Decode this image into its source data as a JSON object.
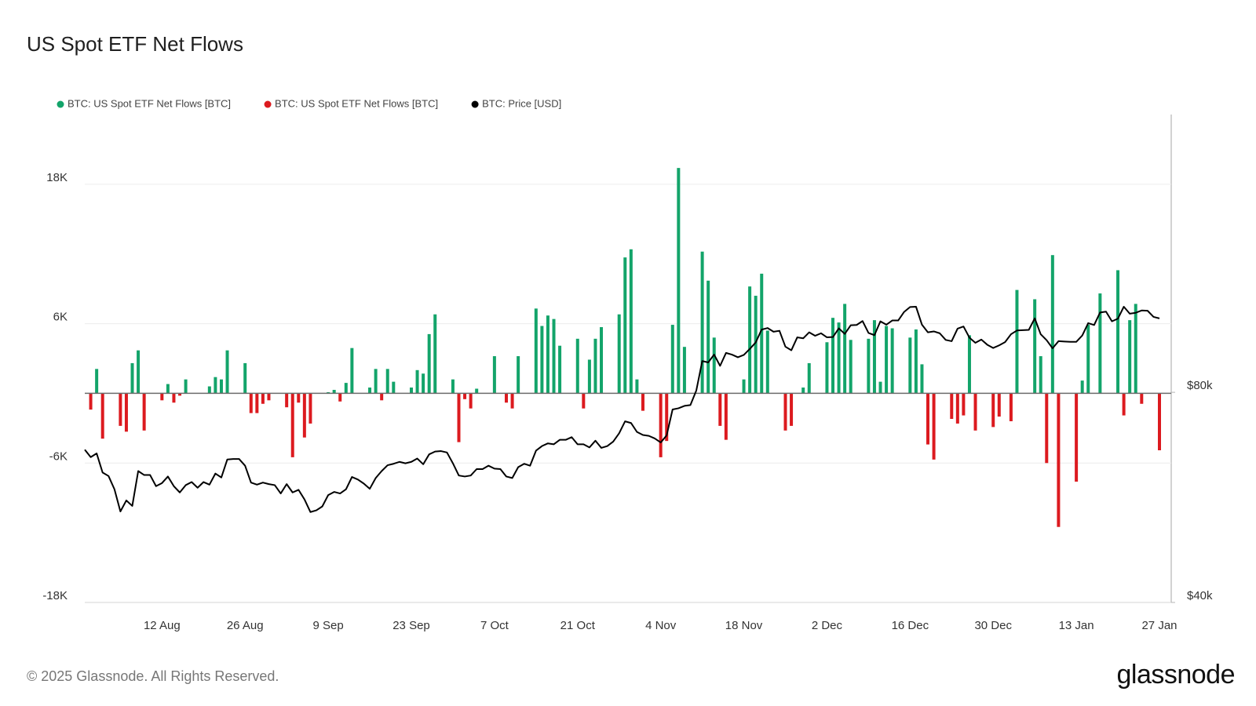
{
  "chart_data": {
    "type": "bar",
    "title": "US Spot ETF Net Flows",
    "categories": [
      null,
      null,
      null,
      null,
      null,
      null,
      null,
      null,
      null,
      null,
      null,
      null,
      null,
      "12 Aug",
      null,
      null,
      null,
      null,
      null,
      null,
      null,
      null,
      null,
      null,
      null,
      null,
      null,
      "26 Aug",
      null,
      null,
      null,
      null,
      null,
      null,
      null,
      null,
      null,
      null,
      null,
      null,
      null,
      "9 Sep",
      null,
      null,
      null,
      null,
      null,
      null,
      null,
      null,
      null,
      null,
      null,
      null,
      null,
      "23 Sep",
      null,
      null,
      null,
      null,
      null,
      null,
      null,
      null,
      null,
      null,
      null,
      null,
      null,
      "7 Oct",
      null,
      null,
      null,
      null,
      null,
      null,
      null,
      null,
      null,
      null,
      null,
      null,
      null,
      "21 Oct",
      null,
      null,
      null,
      null,
      null,
      null,
      null,
      null,
      null,
      null,
      null,
      null,
      null,
      "4 Nov",
      null,
      null,
      null,
      null,
      null,
      null,
      null,
      null,
      null,
      null,
      null,
      null,
      null,
      "18 Nov",
      null,
      null,
      null,
      null,
      null,
      null,
      null,
      null,
      null,
      null,
      null,
      null,
      null,
      "2 Dec",
      null,
      null,
      null,
      null,
      null,
      null,
      null,
      null,
      null,
      null,
      null,
      null,
      null,
      "16 Dec",
      null,
      null,
      null,
      null,
      null,
      null,
      null,
      null,
      null,
      null,
      null,
      null,
      null,
      "30 Dec",
      null,
      null,
      null,
      null,
      null,
      null,
      null,
      null,
      null,
      null,
      null,
      null,
      null,
      "13 Jan",
      null,
      null,
      null,
      null,
      null,
      null,
      null,
      null,
      null,
      null,
      null,
      null,
      null,
      "27 Jan"
    ],
    "series": [
      {
        "name": "BTC: US Spot ETF Net Flows [BTC]",
        "color": "#13a46a",
        "values": [
          null,
          null,
          2100,
          null,
          null,
          null,
          null,
          null,
          2600,
          3700,
          null,
          null,
          null,
          null,
          800,
          null,
          null,
          1200,
          null,
          null,
          null,
          600,
          1400,
          1200,
          3700,
          null,
          null,
          2600,
          null,
          null,
          null,
          null,
          null,
          null,
          null,
          null,
          null,
          null,
          null,
          null,
          null,
          100,
          300,
          null,
          900,
          3900,
          null,
          null,
          500,
          2100,
          null,
          2100,
          1000,
          null,
          null,
          500,
          2000,
          1700,
          5100,
          6800,
          null,
          null,
          1200,
          null,
          null,
          null,
          400,
          null,
          null,
          3200,
          null,
          null,
          null,
          3200,
          null,
          null,
          7300,
          5800,
          6700,
          6400,
          4100,
          null,
          null,
          4700,
          null,
          2900,
          4700,
          5700,
          null,
          null,
          6800,
          11700,
          12400,
          1200,
          null,
          null,
          null,
          null,
          null,
          5900,
          19400,
          4000,
          null,
          null,
          12200,
          9700,
          4800,
          null,
          null,
          null,
          null,
          1200,
          9200,
          8400,
          10300,
          5400,
          null,
          null,
          null,
          null,
          null,
          500,
          2600,
          null,
          null,
          4400,
          6500,
          6100,
          7700,
          4600,
          null,
          null,
          4700,
          6300,
          1000,
          5800,
          5600,
          null,
          null,
          4800,
          5500,
          2500,
          null,
          null,
          null,
          null,
          null,
          null,
          null,
          5000,
          null,
          null,
          null,
          null,
          null,
          null,
          null,
          8900,
          null,
          null,
          8100,
          3200,
          null,
          11900,
          null,
          null,
          null,
          null,
          1100,
          5900,
          null,
          8600,
          null,
          null,
          10600,
          null,
          6300,
          7700,
          null,
          null,
          null,
          null
        ]
      },
      {
        "name": "BTC: US Spot ETF Net Flows [BTC]",
        "color": "#dc1a1f",
        "values": [
          null,
          -1400,
          null,
          -3900,
          null,
          null,
          -2800,
          -3300,
          null,
          null,
          -3200,
          null,
          null,
          -600,
          null,
          -800,
          -200,
          null,
          null,
          null,
          null,
          null,
          null,
          null,
          null,
          null,
          null,
          null,
          -1700,
          -1700,
          -900,
          -600,
          null,
          null,
          -1200,
          -5500,
          -800,
          -3800,
          -2600,
          null,
          null,
          null,
          null,
          -700,
          null,
          null,
          null,
          null,
          null,
          null,
          -600,
          null,
          null,
          null,
          null,
          null,
          null,
          null,
          null,
          null,
          null,
          null,
          null,
          -4200,
          -500,
          -1300,
          null,
          null,
          null,
          null,
          null,
          -800,
          -1300,
          null,
          null,
          null,
          null,
          null,
          null,
          null,
          null,
          null,
          null,
          null,
          -1300,
          null,
          null,
          null,
          null,
          null,
          null,
          null,
          null,
          null,
          -1500,
          null,
          null,
          -5500,
          -4100,
          null,
          null,
          null,
          null,
          null,
          null,
          null,
          null,
          -2800,
          -4000,
          null,
          null,
          null,
          null,
          null,
          null,
          null,
          null,
          null,
          -3200,
          -2800,
          null,
          null,
          null,
          null,
          null,
          null,
          null,
          null,
          null,
          null,
          null,
          null,
          null,
          null,
          null,
          null,
          null,
          null,
          null,
          null,
          null,
          null,
          -4400,
          -5700,
          null,
          null,
          -2200,
          -2600,
          -1900,
          null,
          -3200,
          null,
          null,
          -2900,
          -2000,
          null,
          -2400,
          null,
          null,
          null,
          null,
          null,
          -6000,
          null,
          -11500,
          null,
          null,
          -7600,
          null,
          null,
          null,
          null,
          null,
          null,
          null,
          -1900,
          null,
          null,
          -900,
          null,
          null,
          -4900
        ]
      },
      {
        "name": "BTC: Price [USD]",
        "color": "#000000",
        "type": "line",
        "axis": "y2",
        "values": [
          66200,
          64600,
          65400,
          61400,
          60700,
          58100,
          54000,
          56000,
          55000,
          61700,
          60900,
          60900,
          58700,
          59300,
          60600,
          58700,
          57500,
          58900,
          59500,
          58400,
          59500,
          59000,
          61200,
          60400,
          64100,
          64200,
          64200,
          62800,
          59400,
          59000,
          59400,
          59100,
          58900,
          57300,
          59100,
          57500,
          58000,
          56200,
          53900,
          54200,
          54900,
          57000,
          57600,
          57300,
          58100,
          60500,
          60000,
          59200,
          58200,
          60300,
          61700,
          62900,
          63200,
          63600,
          63300,
          63600,
          64300,
          63100,
          65200,
          65800,
          65900,
          65600,
          63300,
          60800,
          60600,
          60800,
          62100,
          62100,
          62800,
          62200,
          62100,
          60600,
          60300,
          62500,
          63200,
          62800,
          66000,
          67000,
          67600,
          67400,
          68400,
          68400,
          69000,
          67400,
          67400,
          66700,
          68200,
          66600,
          67000,
          68000,
          69900,
          72700,
          72300,
          70200,
          69500,
          69300,
          68700,
          67800,
          69400,
          75600,
          75900,
          76500,
          76700,
          80500,
          88700,
          88300,
          90600,
          87300,
          91100,
          90600,
          89800,
          90500,
          92300,
          94300,
          98400,
          98900,
          97700,
          98000,
          93000,
          91900,
          95900,
          95600,
          97500,
          96400,
          97200,
          95900,
          96000,
          98800,
          97000,
          99800,
          99900,
          101200,
          97300,
          96600,
          101100,
          100000,
          101400,
          101400,
          104300,
          106000,
          106100,
          100000,
          97500,
          97800,
          97200,
          95100,
          94700,
          98700,
          99400,
          95800,
          94200,
          95200,
          93600,
          92600,
          93400,
          94400,
          96900,
          98100,
          98200,
          98300,
          102100,
          96900,
          95000,
          92500,
          94700,
          94600,
          94500,
          94500,
          96500,
          100500,
          99900,
          104100,
          104400,
          101100,
          102000,
          106100,
          103700,
          104000,
          104800,
          104700,
          102600,
          102100
        ]
      }
    ],
    "ylim": [
      -18000,
      24000
    ],
    "yticks": [
      {
        "value": -18000,
        "label": "-18K"
      },
      {
        "value": -6000,
        "label": "-6K"
      },
      {
        "value": 6000,
        "label": "6K"
      },
      {
        "value": 18000,
        "label": "18K"
      }
    ],
    "y2lim": [
      40000,
      200000
    ],
    "y2ticks": [
      {
        "value": 40000,
        "label": "$40k"
      },
      {
        "value": 80000,
        "label": "$80k"
      }
    ],
    "y2_log_scale": true,
    "grid": true,
    "legend": "top-left"
  },
  "footer": {
    "copyright": "© 2025 Glassnode. All Rights Reserved.",
    "logo": "glassnode"
  }
}
